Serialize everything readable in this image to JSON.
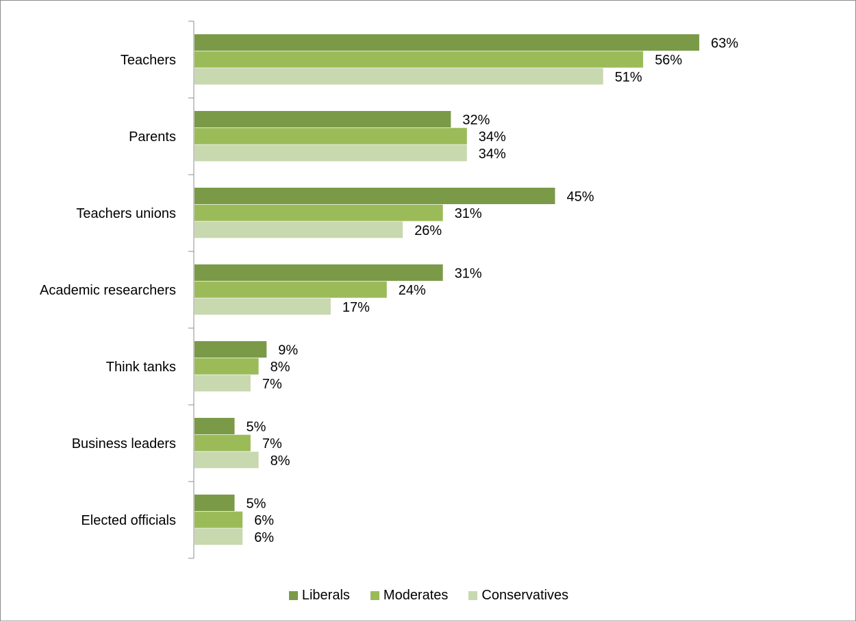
{
  "chart_data": {
    "type": "bar",
    "orientation": "horizontal",
    "categories": [
      "Teachers",
      "Parents",
      "Teachers unions",
      "Academic researchers",
      "Think tanks",
      "Business leaders",
      "Elected officials"
    ],
    "series": [
      {
        "name": "Liberals",
        "color": "#7a9a48",
        "values": [
          63,
          32,
          45,
          31,
          9,
          5,
          5
        ],
        "labels": [
          "63%",
          "32%",
          "45%",
          "31%",
          "9%",
          "5%",
          "5%"
        ]
      },
      {
        "name": "Moderates",
        "color": "#9bbb59",
        "values": [
          56,
          34,
          31,
          24,
          8,
          7,
          6
        ],
        "labels": [
          "56%",
          "34%",
          "31%",
          "24%",
          "8%",
          "7%",
          "6%"
        ]
      },
      {
        "name": "Conservatives",
        "color": "#c8d8af",
        "values": [
          51,
          34,
          26,
          17,
          7,
          8,
          6
        ],
        "labels": [
          "51%",
          "34%",
          "26%",
          "17%",
          "7%",
          "8%",
          "6%"
        ]
      }
    ],
    "title": "",
    "xlabel": "",
    "ylabel": "",
    "xlim": [
      0,
      100
    ],
    "value_axis_visible": false,
    "grid": false,
    "legend": "bottom"
  }
}
